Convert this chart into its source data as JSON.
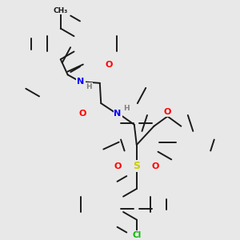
{
  "background_color": "#e8e8e8",
  "atom_colors": {
    "C": "#1a1a1a",
    "N": "#0000ff",
    "O": "#ff0000",
    "S": "#cccc00",
    "Cl": "#00bb00",
    "H": "#808080"
  },
  "bond_color": "#1a1a1a",
  "bond_width": 1.4,
  "double_sep": 2.2
}
